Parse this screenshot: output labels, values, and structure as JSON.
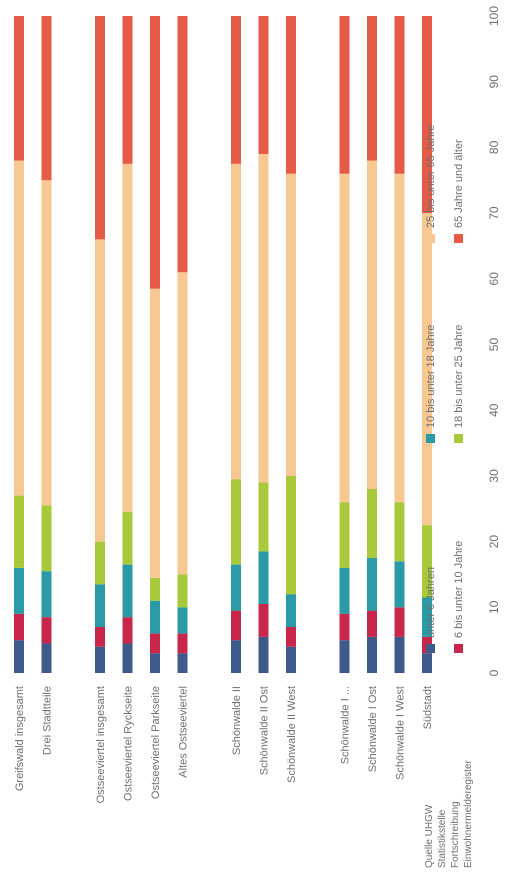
{
  "chart_data": {
    "type": "bar",
    "stacked": true,
    "orientation": "horizontal",
    "categories": [
      "Greifswald insgesamt",
      "Drei Stadtteile",
      "Ostseeviertel insgesamt",
      "Ostseeviertel Ryckseite",
      "Ostseeviertel Parkseite",
      "Altes Ostseeviertel",
      "Schönwalde II",
      "Schönwalde II Ost",
      "Schönwalde II West",
      "Schönwalde I ...",
      "Schönwalde I Ost",
      "Schönwalde I West",
      "Südstadt"
    ],
    "groups": [
      2,
      4,
      3,
      4
    ],
    "series": [
      {
        "name": "unter 6 Jahren",
        "color": "#3d5a8a",
        "values": [
          5,
          4.5,
          4,
          4.5,
          3,
          3,
          5,
          5.5,
          4,
          5,
          5.5,
          5.5,
          3
        ]
      },
      {
        "name": "6 bis unter 10 Jahre",
        "color": "#c8264b",
        "values": [
          4,
          4,
          3,
          4,
          3,
          3,
          4.5,
          5,
          3,
          4,
          4,
          4.5,
          2.5
        ]
      },
      {
        "name": "10 bis unter 18 Jahre",
        "color": "#2a9aa6",
        "values": [
          7,
          7,
          6.5,
          8,
          5,
          4,
          7,
          8,
          5,
          7,
          8,
          7,
          6
        ]
      },
      {
        "name": "18 bis unter 25 Jahre",
        "color": "#a8c93a",
        "values": [
          11,
          10,
          6.5,
          8,
          3.5,
          5,
          13,
          10.5,
          18,
          10,
          10.5,
          9,
          11
        ]
      },
      {
        "name": "25 bis unter 65 Jahre",
        "color": "#f7c892",
        "values": [
          51,
          49.5,
          46,
          53,
          44,
          46,
          48,
          50,
          46,
          50,
          50,
          50,
          47.5
        ]
      },
      {
        "name": "65 Jahre und älter",
        "color": "#e65a48",
        "values": [
          22,
          25,
          34,
          22.5,
          41.5,
          39,
          22.5,
          21,
          24,
          24,
          22,
          24,
          30
        ]
      }
    ],
    "xlim": [
      0,
      100
    ],
    "xticks": [
      0,
      10,
      20,
      30,
      40,
      50,
      60,
      70,
      80,
      90,
      100
    ],
    "source": [
      "Quelle UHGW",
      "Statistikstelle",
      "Fortschreibung",
      "Einwohnermelderegister"
    ]
  }
}
